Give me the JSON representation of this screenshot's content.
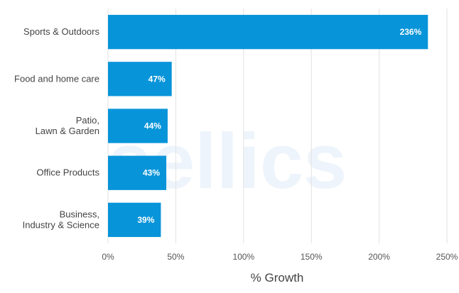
{
  "chart_data": {
    "type": "bar",
    "orientation": "horizontal",
    "categories": [
      [
        "Sports & Outdoors"
      ],
      [
        "Food and home care"
      ],
      [
        "Patio,",
        "Lawn & Garden"
      ],
      [
        "Office Products"
      ],
      [
        "Business,",
        "Industry & Science"
      ]
    ],
    "values": [
      236,
      47,
      44,
      43,
      39
    ],
    "data_labels": [
      "236%",
      "47%",
      "44%",
      "43%",
      "39%"
    ],
    "xlim": [
      0,
      250
    ],
    "xticks": [
      0,
      50,
      100,
      150,
      200,
      250
    ],
    "xtick_labels": [
      "0%",
      "50%",
      "100%",
      "150%",
      "200%",
      "250%"
    ],
    "xlabel": "% Growth",
    "grid": true,
    "colors": {
      "bar": "#0894d9",
      "grid": "#e2e2e2"
    }
  },
  "watermark": "sellics"
}
